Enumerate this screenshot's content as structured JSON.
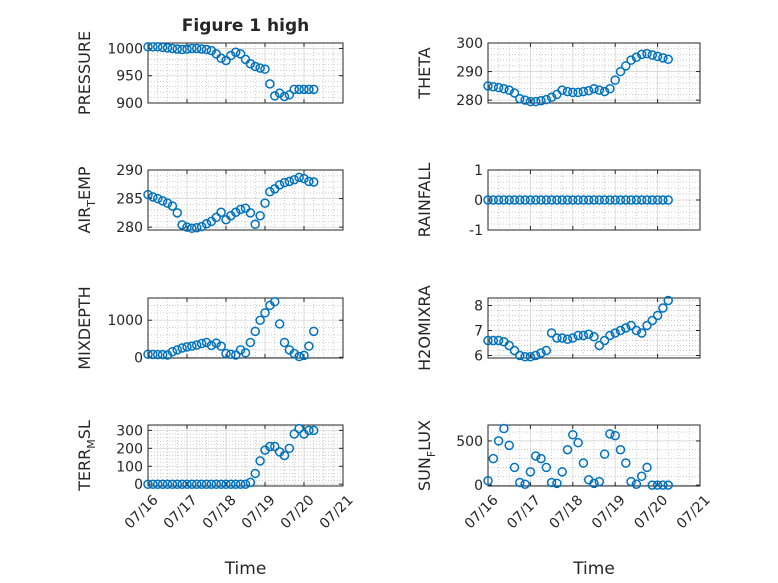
{
  "figure_title": "Figure 1 high",
  "chart_data": [
    {
      "id": "pressure",
      "type": "scatter",
      "title": "Figure 1 high",
      "ylabel": "PRESSURE",
      "ylabel_sub": null,
      "xlabel": "",
      "xlim": [
        "07/16",
        "07/21"
      ],
      "ylim": [
        900,
        1010
      ],
      "yticks": [
        900,
        950,
        1000
      ],
      "xticklabels": [],
      "grid": true,
      "color": "#0072BD",
      "series": [
        {
          "x": [
            "07/16 00:00",
            "07/16 03:00",
            "07/16 06:00",
            "07/16 09:00",
            "07/16 12:00",
            "07/16 15:00",
            "07/16 18:00",
            "07/16 21:00",
            "07/17 00:00",
            "07/17 03:00",
            "07/17 06:00",
            "07/17 09:00",
            "07/17 12:00",
            "07/17 15:00",
            "07/17 18:00",
            "07/17 21:00",
            "07/18 00:00",
            "07/18 03:00",
            "07/18 06:00",
            "07/18 09:00",
            "07/18 12:00",
            "07/18 15:00",
            "07/18 18:00",
            "07/18 21:00",
            "07/19 00:00",
            "07/19 03:00",
            "07/19 06:00",
            "07/19 09:00",
            "07/19 12:00",
            "07/19 15:00",
            "07/19 18:00",
            "07/19 21:00",
            "07/20 00:00",
            "07/20 03:00",
            "07/20 06:00"
          ],
          "y": [
            1003,
            1003,
            1003,
            1002,
            1001,
            1000,
            999,
            998,
            999,
            1000,
            1000,
            999,
            998,
            996,
            990,
            982,
            978,
            987,
            993,
            990,
            980,
            972,
            967,
            964,
            962,
            935,
            913,
            918,
            912,
            915,
            925,
            925,
            925,
            925,
            925
          ]
        }
      ]
    },
    {
      "id": "theta",
      "type": "scatter",
      "title": "",
      "ylabel": "THETA",
      "ylabel_sub": null,
      "xlabel": "",
      "xlim": [
        "07/16",
        "07/21"
      ],
      "ylim": [
        279,
        300
      ],
      "yticks": [
        280,
        290,
        300
      ],
      "xticklabels": [],
      "grid": true,
      "color": "#0072BD",
      "series": [
        {
          "x": [
            "07/16 00:00",
            "07/16 03:00",
            "07/16 06:00",
            "07/16 09:00",
            "07/16 12:00",
            "07/16 15:00",
            "07/16 18:00",
            "07/16 21:00",
            "07/17 00:00",
            "07/17 03:00",
            "07/17 06:00",
            "07/17 09:00",
            "07/17 12:00",
            "07/17 15:00",
            "07/17 18:00",
            "07/17 21:00",
            "07/18 00:00",
            "07/18 03:00",
            "07/18 06:00",
            "07/18 09:00",
            "07/18 12:00",
            "07/18 15:00",
            "07/18 18:00",
            "07/18 21:00",
            "07/19 00:00",
            "07/19 03:00",
            "07/19 06:00",
            "07/19 09:00",
            "07/19 12:00",
            "07/19 15:00",
            "07/19 18:00",
            "07/19 21:00",
            "07/20 00:00",
            "07/20 03:00",
            "07/20 06:00"
          ],
          "y": [
            285,
            284.7,
            284.4,
            284,
            283.5,
            282.5,
            280.5,
            280,
            279.5,
            279.5,
            279.8,
            280.2,
            281,
            282,
            283.5,
            283,
            282.7,
            282.7,
            283,
            283.3,
            284,
            283.5,
            283,
            284,
            287,
            290,
            292,
            294,
            295,
            296,
            296.3,
            295.8,
            295.3,
            294.8,
            294.3
          ]
        }
      ]
    },
    {
      "id": "airtemp",
      "type": "scatter",
      "title": "",
      "ylabel": "AIR",
      "ylabel_sub": "T",
      "ylabel_rest": "EMP",
      "xlabel": "",
      "xlim": [
        "07/16",
        "07/21"
      ],
      "ylim": [
        279.5,
        290
      ],
      "yticks": [
        280,
        285,
        290
      ],
      "xticklabels": [],
      "grid": true,
      "color": "#0072BD",
      "series": [
        {
          "x": [
            "07/16 00:00",
            "07/16 03:00",
            "07/16 06:00",
            "07/16 09:00",
            "07/16 12:00",
            "07/16 15:00",
            "07/16 18:00",
            "07/16 21:00",
            "07/17 00:00",
            "07/17 03:00",
            "07/17 06:00",
            "07/17 09:00",
            "07/17 12:00",
            "07/17 15:00",
            "07/17 18:00",
            "07/17 21:00",
            "07/18 00:00",
            "07/18 03:00",
            "07/18 06:00",
            "07/18 09:00",
            "07/18 12:00",
            "07/18 15:00",
            "07/18 18:00",
            "07/18 21:00",
            "07/19 00:00",
            "07/19 03:00",
            "07/19 06:00",
            "07/19 09:00",
            "07/19 12:00",
            "07/19 15:00",
            "07/19 18:00",
            "07/19 21:00",
            "07/20 00:00",
            "07/20 03:00",
            "07/20 06:00"
          ],
          "y": [
            285.7,
            285.3,
            285,
            284.6,
            284.2,
            283.7,
            282.5,
            280.4,
            280,
            279.8,
            279.9,
            280.1,
            280.6,
            281,
            281.7,
            282.6,
            281.3,
            282,
            282.6,
            283.1,
            283.3,
            282.5,
            280.5,
            282,
            284.2,
            286.2,
            286.7,
            287.4,
            287.8,
            288,
            288.3,
            288.7,
            288.5,
            288,
            287.9
          ]
        }
      ]
    },
    {
      "id": "rainfall",
      "type": "scatter",
      "title": "",
      "ylabel": "RAINFALL",
      "ylabel_sub": null,
      "xlabel": "",
      "xlim": [
        "07/16",
        "07/21"
      ],
      "ylim": [
        -1,
        1
      ],
      "yticks": [
        -1,
        0,
        1
      ],
      "xticklabels": [],
      "grid": true,
      "color": "#0072BD",
      "series": [
        {
          "x": [
            "07/16 00:00",
            "07/16 03:00",
            "07/16 06:00",
            "07/16 09:00",
            "07/16 12:00",
            "07/16 15:00",
            "07/16 18:00",
            "07/16 21:00",
            "07/17 00:00",
            "07/17 03:00",
            "07/17 06:00",
            "07/17 09:00",
            "07/17 12:00",
            "07/17 15:00",
            "07/17 18:00",
            "07/17 21:00",
            "07/18 00:00",
            "07/18 03:00",
            "07/18 06:00",
            "07/18 09:00",
            "07/18 12:00",
            "07/18 15:00",
            "07/18 18:00",
            "07/18 21:00",
            "07/19 00:00",
            "07/19 03:00",
            "07/19 06:00",
            "07/19 09:00",
            "07/19 12:00",
            "07/19 15:00",
            "07/19 18:00",
            "07/19 21:00",
            "07/20 00:00",
            "07/20 03:00",
            "07/20 06:00"
          ],
          "y": [
            0,
            0,
            0,
            0,
            0,
            0,
            0,
            0,
            0,
            0,
            0,
            0,
            0,
            0,
            0,
            0,
            0,
            0,
            0,
            0,
            0,
            0,
            0,
            0,
            0,
            0,
            0,
            0,
            0,
            0,
            0,
            0,
            0,
            0,
            0
          ]
        }
      ]
    },
    {
      "id": "mixdepth",
      "type": "scatter",
      "title": "",
      "ylabel": "MIXDEPTH",
      "ylabel_sub": null,
      "xlabel": "",
      "xlim": [
        "07/16",
        "07/21"
      ],
      "ylim": [
        -20,
        1600
      ],
      "yticks": [
        0,
        1000
      ],
      "xticklabels": [],
      "grid": true,
      "color": "#0072BD",
      "series": [
        {
          "x": [
            "07/16 00:00",
            "07/16 03:00",
            "07/16 06:00",
            "07/16 09:00",
            "07/16 12:00",
            "07/16 15:00",
            "07/16 18:00",
            "07/16 21:00",
            "07/17 00:00",
            "07/17 03:00",
            "07/17 06:00",
            "07/17 09:00",
            "07/17 12:00",
            "07/17 15:00",
            "07/17 18:00",
            "07/17 21:00",
            "07/18 00:00",
            "07/18 03:00",
            "07/18 06:00",
            "07/18 09:00",
            "07/18 12:00",
            "07/18 15:00",
            "07/18 18:00",
            "07/18 21:00",
            "07/19 00:00",
            "07/19 03:00",
            "07/19 06:00",
            "07/19 09:00",
            "07/19 12:00",
            "07/19 15:00",
            "07/19 18:00",
            "07/19 21:00",
            "07/20 00:00",
            "07/20 03:00",
            "07/20 06:00"
          ],
          "y": [
            80,
            75,
            70,
            70,
            60,
            150,
            200,
            250,
            280,
            300,
            330,
            370,
            400,
            320,
            380,
            300,
            100,
            80,
            60,
            200,
            120,
            400,
            700,
            1000,
            1200,
            1400,
            1500,
            900,
            400,
            200,
            100,
            20,
            50,
            300,
            700
          ]
        }
      ]
    },
    {
      "id": "h2omixra",
      "type": "scatter",
      "title": "",
      "ylabel": "H2OMIXRA",
      "ylabel_sub": null,
      "xlabel": "",
      "xlim": [
        "07/16",
        "07/21"
      ],
      "ylim": [
        5.9,
        8.3
      ],
      "yticks": [
        6,
        7,
        8
      ],
      "xticklabels": [],
      "grid": true,
      "color": "#0072BD",
      "series": [
        {
          "x": [
            "07/16 00:00",
            "07/16 03:00",
            "07/16 06:00",
            "07/16 09:00",
            "07/16 12:00",
            "07/16 15:00",
            "07/16 18:00",
            "07/16 21:00",
            "07/17 00:00",
            "07/17 03:00",
            "07/17 06:00",
            "07/17 09:00",
            "07/17 12:00",
            "07/17 15:00",
            "07/17 18:00",
            "07/17 21:00",
            "07/18 00:00",
            "07/18 03:00",
            "07/18 06:00",
            "07/18 09:00",
            "07/18 12:00",
            "07/18 15:00",
            "07/18 18:00",
            "07/18 21:00",
            "07/19 00:00",
            "07/19 03:00",
            "07/19 06:00",
            "07/19 09:00",
            "07/19 12:00",
            "07/19 15:00",
            "07/19 18:00",
            "07/19 21:00",
            "07/20 00:00",
            "07/20 03:00",
            "07/20 06:00"
          ],
          "y": [
            6.6,
            6.6,
            6.6,
            6.55,
            6.4,
            6.2,
            6,
            5.95,
            5.95,
            6,
            6.1,
            6.2,
            6.9,
            6.7,
            6.7,
            6.65,
            6.7,
            6.8,
            6.8,
            6.85,
            6.75,
            6.4,
            6.6,
            6.8,
            6.9,
            7,
            7.1,
            7.2,
            7,
            6.9,
            7.2,
            7.4,
            7.6,
            7.9,
            8.2
          ]
        }
      ]
    },
    {
      "id": "terrmsl",
      "type": "scatter",
      "title": "",
      "ylabel": "TERR",
      "ylabel_sub": "M",
      "ylabel_rest": "SL",
      "xlabel": "Time",
      "xlim": [
        "07/16",
        "07/21"
      ],
      "ylim": [
        -10,
        330
      ],
      "yticks": [
        0,
        100,
        200,
        300
      ],
      "xticklabels": [
        "07/16",
        "07/17",
        "07/18",
        "07/19",
        "07/20",
        "07/21"
      ],
      "grid": true,
      "color": "#0072BD",
      "series": [
        {
          "x": [
            "07/16 00:00",
            "07/16 03:00",
            "07/16 06:00",
            "07/16 09:00",
            "07/16 12:00",
            "07/16 15:00",
            "07/16 18:00",
            "07/16 21:00",
            "07/17 00:00",
            "07/17 03:00",
            "07/17 06:00",
            "07/17 09:00",
            "07/17 12:00",
            "07/17 15:00",
            "07/17 18:00",
            "07/17 21:00",
            "07/18 00:00",
            "07/18 03:00",
            "07/18 06:00",
            "07/18 09:00",
            "07/18 12:00",
            "07/18 15:00",
            "07/18 18:00",
            "07/18 21:00",
            "07/19 00:00",
            "07/19 03:00",
            "07/19 06:00",
            "07/19 09:00",
            "07/19 12:00",
            "07/19 15:00",
            "07/19 18:00",
            "07/19 21:00",
            "07/20 00:00",
            "07/20 03:00",
            "07/20 06:00"
          ],
          "y": [
            0,
            0,
            0,
            0,
            0,
            0,
            0,
            0,
            0,
            0,
            0,
            0,
            0,
            0,
            0,
            0,
            0,
            0,
            0,
            0,
            0,
            10,
            60,
            130,
            190,
            210,
            210,
            180,
            160,
            200,
            280,
            310,
            280,
            300,
            300
          ]
        }
      ]
    },
    {
      "id": "sunflux",
      "type": "scatter",
      "title": "",
      "ylabel": "SUN",
      "ylabel_sub": "F",
      "ylabel_rest": "LUX",
      "xlabel": "Time",
      "xlim": [
        "07/16",
        "07/21"
      ],
      "ylim": [
        -10,
        680
      ],
      "yticks": [
        0,
        500
      ],
      "xticklabels": [
        "07/16",
        "07/17",
        "07/18",
        "07/19",
        "07/20",
        "07/21"
      ],
      "grid": true,
      "color": "#0072BD",
      "series": [
        {
          "x": [
            "07/16 00:00",
            "07/16 03:00",
            "07/16 06:00",
            "07/16 09:00",
            "07/16 12:00",
            "07/16 15:00",
            "07/16 18:00",
            "07/16 21:00",
            "07/17 00:00",
            "07/17 03:00",
            "07/17 06:00",
            "07/17 09:00",
            "07/17 12:00",
            "07/17 15:00",
            "07/17 18:00",
            "07/17 21:00",
            "07/18 00:00",
            "07/18 03:00",
            "07/18 06:00",
            "07/18 09:00",
            "07/18 12:00",
            "07/18 15:00",
            "07/18 18:00",
            "07/18 21:00",
            "07/19 00:00",
            "07/19 03:00",
            "07/19 06:00",
            "07/19 09:00",
            "07/19 12:00",
            "07/19 15:00",
            "07/19 18:00",
            "07/19 21:00",
            "07/20 00:00",
            "07/20 03:00",
            "07/20 06:00"
          ],
          "y": [
            50,
            300,
            500,
            640,
            450,
            200,
            30,
            10,
            150,
            330,
            300,
            200,
            30,
            20,
            150,
            400,
            570,
            480,
            250,
            60,
            20,
            40,
            350,
            580,
            560,
            400,
            250,
            40,
            10,
            100,
            200,
            0,
            0,
            0,
            0
          ]
        }
      ]
    }
  ]
}
